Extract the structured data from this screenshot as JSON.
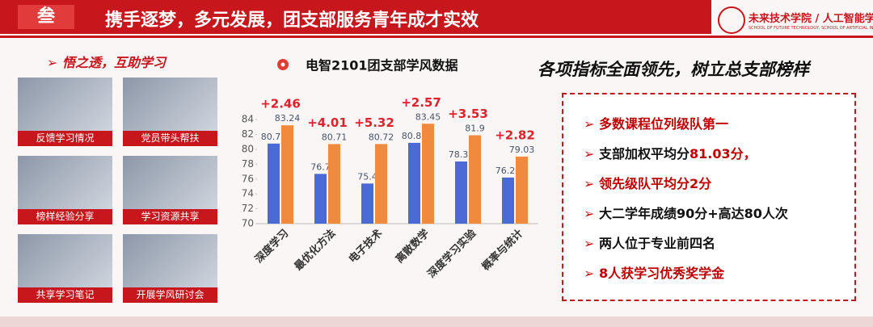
{
  "header": {
    "section": "叁",
    "title": "携手逐梦，多元发展，团支部服务青年成才实效",
    "logo_cn": "未来技术学院 / 人工智能学院",
    "logo_en": "SCHOOL OF FUTURE TECHNOLOGY, SCHOOL OF ARTIFICIAL INTELLIGENCE, BJ"
  },
  "left": {
    "heading": "➢ 悟之透，互助学习",
    "photos": [
      "反馈学习情况",
      "党员带头帮扶",
      "榜样经验分享",
      "学习资源共享",
      "共享学习笔记",
      "开展学风研讨会"
    ]
  },
  "right": {
    "heading": "各项指标全面领先，树立总支部榜样",
    "items": [
      [
        {
          "text": "多数课程位列级队第一",
          "color": "#c00000"
        }
      ],
      [
        {
          "text": "支部加权平均分",
          "color": "#111111"
        },
        {
          "text": "81.03分，",
          "color": "#c00000"
        }
      ],
      [
        {
          "text": "领先级队平均分2分",
          "color": "#c00000"
        }
      ],
      [
        {
          "text": "大二学年成绩90分+高达80人次",
          "color": "#111111"
        }
      ],
      [
        {
          "text": "两人位于专业前四名",
          "color": "#111111"
        }
      ],
      [
        {
          "text": "8人获学习优秀奖学金",
          "color": "#c00000"
        }
      ]
    ]
  },
  "chart_data": {
    "type": "bar",
    "title": "电智2101团支部学风数据",
    "categories": [
      "深度学习",
      "最优化方法",
      "电子技术",
      "离散数学",
      "深度学习实验",
      "概率与统计"
    ],
    "series": [
      {
        "color": "#4a6ad6",
        "values": [
          80.78,
          76.7,
          75.4,
          80.88,
          78.37,
          76.21
        ]
      },
      {
        "color": "#ef8a3e",
        "values": [
          83.24,
          80.71,
          80.72,
          83.45,
          81.9,
          79.03
        ]
      }
    ],
    "annotations": [
      "+2.46",
      "+4.01",
      "+5.32",
      "+2.57",
      "+3.53",
      "+2.82"
    ],
    "ylim": [
      70,
      85
    ],
    "yticks": [
      70,
      72,
      74,
      76,
      78,
      80,
      82,
      84
    ]
  }
}
